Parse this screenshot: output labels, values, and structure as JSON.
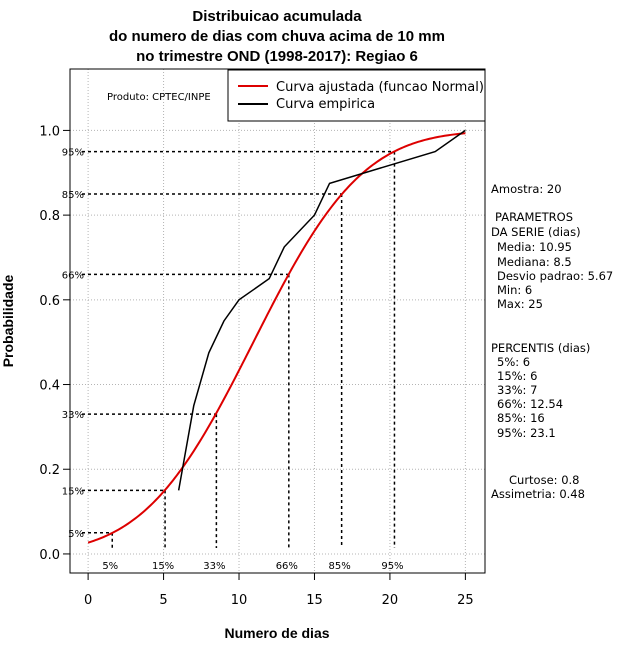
{
  "chart_data": {
    "type": "line",
    "title": [
      "Distribuicao acumulada",
      "do numero de dias com chuva acima de 10 mm",
      "no trimestre OND (1998-2017): Regiao 6"
    ],
    "xlabel": "Numero de dias",
    "ylabel": "Probabilidade",
    "xlim": [
      -1.2,
      26.3
    ],
    "ylim": [
      -0.045,
      1.145
    ],
    "xticks": [
      0,
      5,
      10,
      15,
      20,
      25
    ],
    "yticks": [
      0.0,
      0.2,
      0.4,
      0.6,
      0.8,
      1.0
    ],
    "xtick_labels": [
      "0",
      "5",
      "10",
      "15",
      "20",
      "25"
    ],
    "ytick_labels": [
      "0.0",
      "0.2",
      "0.4",
      "0.6",
      "0.8",
      "1.0"
    ],
    "grid": true,
    "producer_note": "Produto: CPTEC/INPE",
    "legend": {
      "position": "top-right",
      "entries": [
        {
          "label": "Curva ajustada (funcao Normal)",
          "color": "#dd0000"
        },
        {
          "label": "Curva empirica",
          "color": "#000000"
        }
      ]
    },
    "fitted_normal": {
      "mean": 10.95,
      "sd": 5.67,
      "x_range": [
        0,
        25
      ]
    },
    "series": [
      {
        "name": "Curva empirica",
        "color": "#000000",
        "x": [
          6,
          7,
          8,
          9,
          10,
          12,
          13,
          15,
          16,
          23,
          25
        ],
        "y": [
          0.15,
          0.35,
          0.475,
          0.55,
          0.6,
          0.65,
          0.725,
          0.8,
          0.875,
          0.95,
          1.0
        ]
      }
    ],
    "percentile_markers": [
      {
        "label": "5%",
        "y": 0.05,
        "x": 1.6
      },
      {
        "label": "15%",
        "y": 0.15,
        "x": 5.1
      },
      {
        "label": "33%",
        "y": 0.33,
        "x": 8.5
      },
      {
        "label": "66%",
        "y": 0.66,
        "x": 13.3
      },
      {
        "label": "85%",
        "y": 0.85,
        "x": 16.8
      },
      {
        "label": "95%",
        "y": 0.95,
        "x": 20.3
      }
    ],
    "side_text": [
      "Amostra: 20",
      "PARAMETROS",
      "DA SERIE (dias)",
      "Media: 10.95",
      "Mediana: 8.5",
      "Desvio padrao: 5.67",
      "Min: 6",
      "Max: 25",
      "PERCENTIS (dias)",
      "5%: 6",
      "15%: 6",
      "33%: 7",
      "66%: 12.54",
      "85%: 16",
      "95%: 23.1",
      "Curtose: 0.8",
      "Assimetria: 0.48"
    ]
  },
  "colors": {
    "fitted": "#dd0000",
    "empirical": "#000000",
    "grid": "#b4b4b4"
  }
}
